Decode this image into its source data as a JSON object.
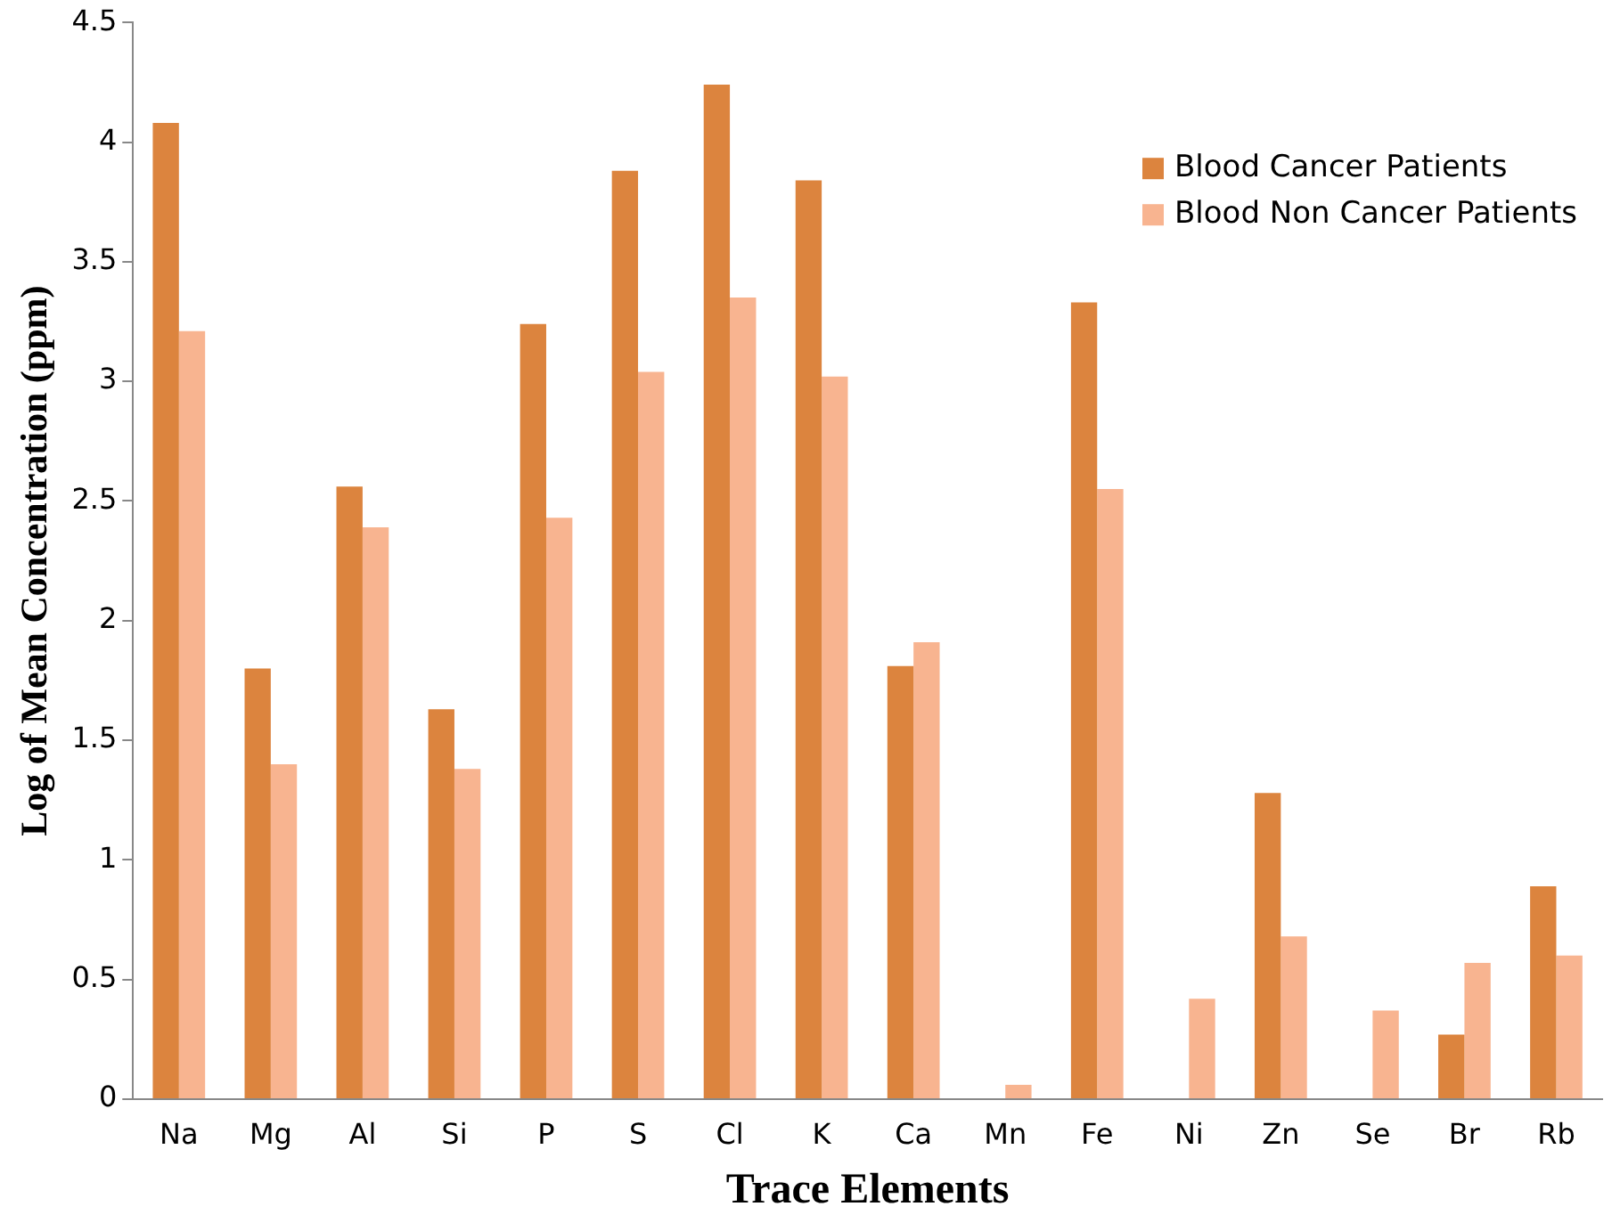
{
  "chart_data": {
    "type": "bar",
    "xlabel": "Trace Elements",
    "ylabel": "Log of Mean Concentration (ppm)",
    "categories": [
      "Na",
      "Mg",
      "Al",
      "Si",
      "P",
      "S",
      "Cl",
      "K",
      "Ca",
      "Mn",
      "Fe",
      "Ni",
      "Zn",
      "Se",
      "Br",
      "Rb"
    ],
    "series": [
      {
        "name": "Blood Cancer Patients",
        "color": "#dc843e",
        "values": [
          4.08,
          1.8,
          2.56,
          1.63,
          3.24,
          3.88,
          4.24,
          3.84,
          1.81,
          null,
          3.33,
          null,
          1.28,
          null,
          0.27,
          0.89
        ]
      },
      {
        "name": "Blood Non Cancer Patients",
        "color": "#f8b490",
        "values": [
          3.21,
          1.4,
          2.39,
          1.38,
          2.43,
          3.04,
          3.35,
          3.02,
          1.91,
          0.06,
          2.55,
          0.42,
          0.68,
          0.37,
          0.57,
          0.6
        ]
      }
    ],
    "ylim": [
      0,
      4.5
    ],
    "yticks": [
      0,
      0.5,
      1,
      1.5,
      2,
      2.5,
      3,
      3.5,
      4,
      4.5
    ],
    "grid": false,
    "legend": "top right"
  }
}
